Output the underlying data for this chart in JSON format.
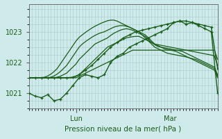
{
  "bg_color": "#ceeaea",
  "grid_color": "#aacccc",
  "line_color": "#1a5c1a",
  "xlabel": "Pression niveau de la mer( hPa )",
  "ylim": [
    1020.5,
    1023.9
  ],
  "yticks": [
    1021,
    1022,
    1023
  ],
  "xlim": [
    0,
    60
  ],
  "xtick_positions": [
    15,
    45
  ],
  "xtick_labels": [
    "Lun",
    "Mar"
  ],
  "series": [
    {
      "x": [
        0,
        1,
        2,
        3,
        4,
        5,
        6,
        7,
        8,
        9,
        10,
        11,
        12,
        13,
        14,
        15,
        16,
        17,
        18,
        19,
        20,
        21,
        22,
        23,
        24,
        25,
        26,
        27,
        28,
        29,
        30,
        31,
        32,
        33,
        34,
        35,
        36,
        37,
        38,
        39,
        40,
        41,
        42,
        43,
        44,
        45,
        46,
        47,
        48,
        49,
        50,
        51,
        52,
        53,
        54,
        55,
        56,
        57,
        58,
        59,
        60
      ],
      "y": [
        1021.5,
        1021.5,
        1021.5,
        1021.5,
        1021.5,
        1021.5,
        1021.5,
        1021.5,
        1021.5,
        1021.5,
        1021.5,
        1021.5,
        1021.5,
        1021.5,
        1021.5,
        1021.5,
        1021.55,
        1021.6,
        1021.65,
        1021.7,
        1021.75,
        1021.8,
        1021.85,
        1021.9,
        1021.95,
        1022.0,
        1022.05,
        1022.1,
        1022.15,
        1022.2,
        1022.25,
        1022.3,
        1022.35,
        1022.4,
        1022.4,
        1022.4,
        1022.4,
        1022.4,
        1022.4,
        1022.4,
        1022.4,
        1022.4,
        1022.4,
        1022.4,
        1022.4,
        1022.4,
        1022.4,
        1022.4,
        1022.4,
        1022.4,
        1022.4,
        1022.4,
        1022.4,
        1022.4,
        1022.4,
        1022.4,
        1022.4,
        1022.4,
        1022.4,
        1022.4,
        1022.1
      ],
      "marker": false,
      "lw": 0.9
    },
    {
      "x": [
        0,
        1,
        2,
        3,
        4,
        5,
        6,
        7,
        8,
        9,
        10,
        11,
        12,
        13,
        14,
        15,
        16,
        17,
        18,
        19,
        20,
        21,
        22,
        23,
        24,
        25,
        26,
        27,
        28,
        29,
        30,
        31,
        32,
        33,
        34,
        35,
        36,
        37,
        38,
        39,
        40,
        41,
        42,
        43,
        44,
        45,
        46,
        47,
        48,
        49,
        50,
        51,
        52,
        53,
        54,
        55,
        56,
        57,
        58,
        59,
        60
      ],
      "y": [
        1021.5,
        1021.5,
        1021.5,
        1021.5,
        1021.5,
        1021.5,
        1021.5,
        1021.5,
        1021.5,
        1021.5,
        1021.5,
        1021.5,
        1021.5,
        1021.5,
        1021.5,
        1021.55,
        1021.6,
        1021.7,
        1021.8,
        1021.9,
        1022.0,
        1022.1,
        1022.2,
        1022.3,
        1022.4,
        1022.5,
        1022.55,
        1022.6,
        1022.65,
        1022.7,
        1022.75,
        1022.8,
        1022.82,
        1022.84,
        1022.85,
        1022.85,
        1022.8,
        1022.75,
        1022.7,
        1022.65,
        1022.6,
        1022.58,
        1022.56,
        1022.54,
        1022.52,
        1022.5,
        1022.48,
        1022.46,
        1022.44,
        1022.42,
        1022.4,
        1022.38,
        1022.36,
        1022.34,
        1022.32,
        1022.3,
        1022.28,
        1022.26,
        1022.24,
        1022.22,
        1021.9
      ],
      "marker": false,
      "lw": 0.9
    },
    {
      "x": [
        0,
        1,
        2,
        3,
        4,
        5,
        6,
        7,
        8,
        9,
        10,
        11,
        12,
        13,
        14,
        15,
        16,
        17,
        18,
        19,
        20,
        21,
        22,
        23,
        24,
        25,
        26,
        27,
        28,
        29,
        30,
        31,
        32,
        33,
        34,
        35,
        36,
        37,
        38,
        39,
        40,
        41,
        42,
        43,
        44,
        45,
        46,
        47,
        48,
        49,
        50,
        51,
        52,
        53,
        54,
        55,
        56,
        57,
        58,
        59,
        60
      ],
      "y": [
        1021.5,
        1021.5,
        1021.5,
        1021.5,
        1021.5,
        1021.5,
        1021.5,
        1021.5,
        1021.5,
        1021.52,
        1021.55,
        1021.6,
        1021.65,
        1021.75,
        1021.85,
        1021.95,
        1022.1,
        1022.2,
        1022.3,
        1022.4,
        1022.5,
        1022.6,
        1022.65,
        1022.7,
        1022.75,
        1022.8,
        1022.88,
        1022.95,
        1023.0,
        1023.05,
        1023.08,
        1023.1,
        1023.08,
        1023.05,
        1023.0,
        1022.95,
        1022.9,
        1022.85,
        1022.75,
        1022.65,
        1022.58,
        1022.52,
        1022.5,
        1022.48,
        1022.46,
        1022.44,
        1022.42,
        1022.4,
        1022.38,
        1022.35,
        1022.3,
        1022.25,
        1022.2,
        1022.15,
        1022.1,
        1022.05,
        1022.0,
        1021.95,
        1021.9,
        1021.85,
        1021.6
      ],
      "marker": false,
      "lw": 0.9
    },
    {
      "x": [
        0,
        1,
        2,
        3,
        4,
        5,
        6,
        7,
        8,
        9,
        10,
        11,
        12,
        13,
        14,
        15,
        16,
        17,
        18,
        19,
        20,
        21,
        22,
        23,
        24,
        25,
        26,
        27,
        28,
        29,
        30,
        31,
        32,
        33,
        34,
        35,
        36,
        37,
        38,
        39,
        40,
        41,
        42,
        43,
        44,
        45,
        46,
        47,
        48,
        49,
        50,
        51,
        52,
        53,
        54,
        55,
        56,
        57,
        58,
        59,
        60
      ],
      "y": [
        1021.5,
        1021.5,
        1021.5,
        1021.5,
        1021.5,
        1021.5,
        1021.5,
        1021.52,
        1021.56,
        1021.62,
        1021.7,
        1021.8,
        1021.9,
        1022.05,
        1022.2,
        1022.35,
        1022.5,
        1022.6,
        1022.68,
        1022.75,
        1022.82,
        1022.88,
        1022.93,
        1022.97,
        1023.0,
        1023.05,
        1023.1,
        1023.15,
        1023.18,
        1023.2,
        1023.2,
        1023.18,
        1023.15,
        1023.1,
        1023.05,
        1023.0,
        1022.95,
        1022.9,
        1022.8,
        1022.7,
        1022.6,
        1022.55,
        1022.5,
        1022.45,
        1022.42,
        1022.4,
        1022.38,
        1022.35,
        1022.3,
        1022.25,
        1022.2,
        1022.15,
        1022.1,
        1022.05,
        1022.0,
        1021.95,
        1021.9,
        1021.85,
        1021.8,
        1021.75,
        1021.5
      ],
      "marker": false,
      "lw": 0.9
    },
    {
      "x": [
        0,
        1,
        2,
        3,
        4,
        5,
        6,
        7,
        8,
        9,
        10,
        11,
        12,
        13,
        14,
        15,
        16,
        17,
        18,
        19,
        20,
        21,
        22,
        23,
        24,
        25,
        26,
        27,
        28,
        29,
        30,
        31,
        32,
        33,
        34,
        35,
        36,
        37,
        38,
        39,
        40,
        41,
        42,
        43,
        44,
        45,
        46,
        47,
        48,
        49,
        50,
        51,
        52,
        53,
        54,
        55,
        56,
        57,
        58,
        59,
        60
      ],
      "y": [
        1021.5,
        1021.5,
        1021.5,
        1021.5,
        1021.5,
        1021.52,
        1021.56,
        1021.62,
        1021.7,
        1021.8,
        1021.95,
        1022.1,
        1022.25,
        1022.4,
        1022.55,
        1022.7,
        1022.82,
        1022.9,
        1022.98,
        1023.05,
        1023.12,
        1023.18,
        1023.23,
        1023.28,
        1023.32,
        1023.36,
        1023.38,
        1023.38,
        1023.35,
        1023.3,
        1023.25,
        1023.2,
        1023.15,
        1023.1,
        1023.05,
        1023.0,
        1022.9,
        1022.8,
        1022.7,
        1022.6,
        1022.5,
        1022.45,
        1022.4,
        1022.35,
        1022.3,
        1022.28,
        1022.26,
        1022.24,
        1022.22,
        1022.2,
        1022.18,
        1022.15,
        1022.12,
        1022.1,
        1022.05,
        1022.0,
        1021.95,
        1021.9,
        1021.85,
        1021.8,
        1021.55
      ],
      "marker": false,
      "lw": 0.9
    },
    {
      "x": [
        0,
        2,
        4,
        6,
        8,
        10,
        12,
        14,
        16,
        18,
        20,
        22,
        24,
        26,
        28,
        30,
        32,
        34,
        36,
        38,
        40,
        42,
        44,
        46,
        48,
        50,
        52,
        54,
        56,
        58,
        60
      ],
      "y": [
        1021.0,
        1020.9,
        1020.85,
        1020.95,
        1020.75,
        1020.8,
        1021.0,
        1021.25,
        1021.5,
        1021.6,
        1021.55,
        1021.5,
        1021.6,
        1022.0,
        1022.2,
        1022.3,
        1022.5,
        1022.6,
        1022.7,
        1022.8,
        1022.9,
        1023.0,
        1023.1,
        1023.3,
        1023.35,
        1023.25,
        1023.3,
        1023.2,
        1023.1,
        1023.0,
        1021.0
      ],
      "marker": true,
      "lw": 1.0
    },
    {
      "x": [
        0,
        2,
        4,
        6,
        8,
        10,
        12,
        14,
        16,
        18,
        20,
        22,
        24,
        26,
        28,
        30,
        32,
        34,
        36,
        38,
        40,
        42,
        44,
        46,
        48,
        50,
        52,
        54,
        56,
        58,
        60
      ],
      "y": [
        1021.5,
        1021.5,
        1021.5,
        1021.5,
        1021.5,
        1021.5,
        1021.5,
        1021.52,
        1021.6,
        1021.75,
        1021.9,
        1022.1,
        1022.3,
        1022.5,
        1022.65,
        1022.8,
        1022.9,
        1023.0,
        1023.05,
        1023.1,
        1023.15,
        1023.2,
        1023.25,
        1023.3,
        1023.35,
        1023.35,
        1023.3,
        1023.25,
        1023.2,
        1023.15,
        1021.8
      ],
      "marker": true,
      "lw": 1.0
    }
  ]
}
